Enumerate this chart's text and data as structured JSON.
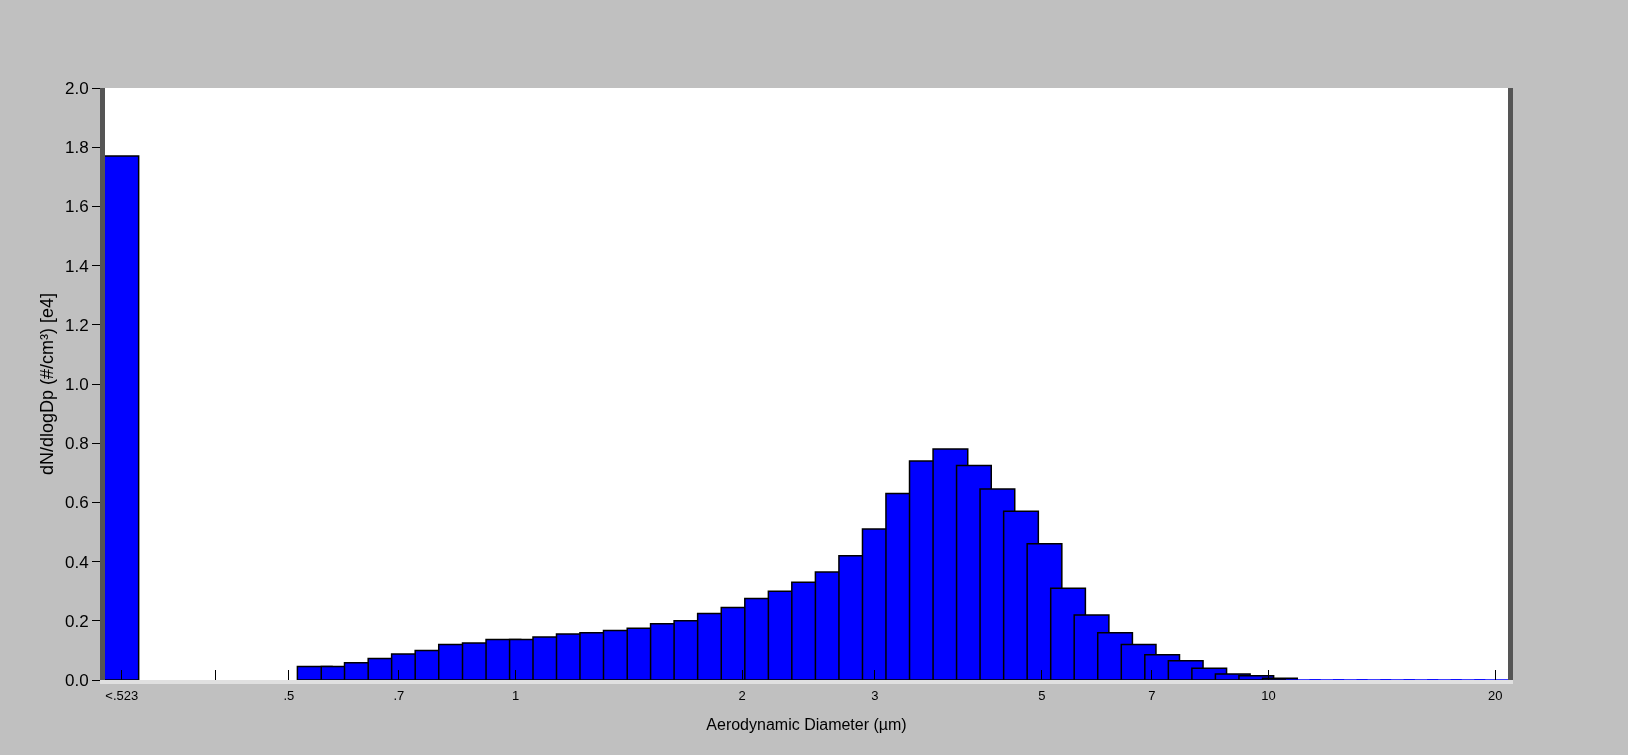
{
  "chart_data": {
    "type": "bar",
    "xlabel": "Aerodynamic Diameter (µm)",
    "ylabel": "dN/dlogDp (#/cm³) [e4]",
    "x": [
      0.3,
      0.542,
      0.583,
      0.626,
      0.673,
      0.723,
      0.777,
      0.835,
      0.898,
      0.965,
      1.037,
      1.114,
      1.197,
      1.286,
      1.382,
      1.486,
      1.596,
      1.715,
      1.843,
      1.981,
      2.129,
      2.288,
      2.458,
      2.642,
      2.839,
      3.051,
      3.278,
      3.523,
      3.786,
      4.068,
      4.371,
      4.698,
      5.048,
      5.425,
      5.829,
      6.264,
      6.732,
      7.234,
      7.774,
      8.354,
      8.977,
      9.647,
      10.37,
      11.14,
      11.97,
      12.86,
      13.82,
      14.86,
      15.96,
      17.15,
      18.43,
      19.81
    ],
    "values": [
      1.77,
      0.046,
      0.046,
      0.058,
      0.073,
      0.088,
      0.1,
      0.12,
      0.125,
      0.137,
      0.137,
      0.145,
      0.155,
      0.16,
      0.167,
      0.175,
      0.19,
      0.2,
      0.225,
      0.245,
      0.275,
      0.3,
      0.33,
      0.365,
      0.42,
      0.51,
      0.63,
      0.74,
      0.78,
      0.725,
      0.645,
      0.57,
      0.46,
      0.31,
      0.22,
      0.16,
      0.12,
      0.085,
      0.065,
      0.04,
      0.02,
      0.014,
      0.006,
      0,
      0,
      0,
      0,
      0,
      0,
      0,
      0,
      0
    ],
    "color": "#0000ff",
    "log": "x",
    "xlim": [
      0.285,
      20.8
    ],
    "xticks": [
      {
        "value": 0.3,
        "label": "<.523"
      },
      {
        "value": 0.4,
        "label": null
      },
      {
        "value": 0.5,
        "label": ".5"
      },
      {
        "value": 0.7,
        "label": ".7"
      },
      1,
      2,
      3,
      5,
      7,
      10,
      20
    ],
    "ylim": [
      0,
      2
    ],
    "yticks": [
      {
        "value": 0,
        "label": "0.0"
      },
      0.2,
      0.4,
      0.6,
      0.8,
      {
        "value": 1,
        "label": "1.0"
      },
      1.2,
      1.4,
      1.6,
      1.8,
      {
        "value": 2,
        "label": "2.0"
      }
    ]
  }
}
